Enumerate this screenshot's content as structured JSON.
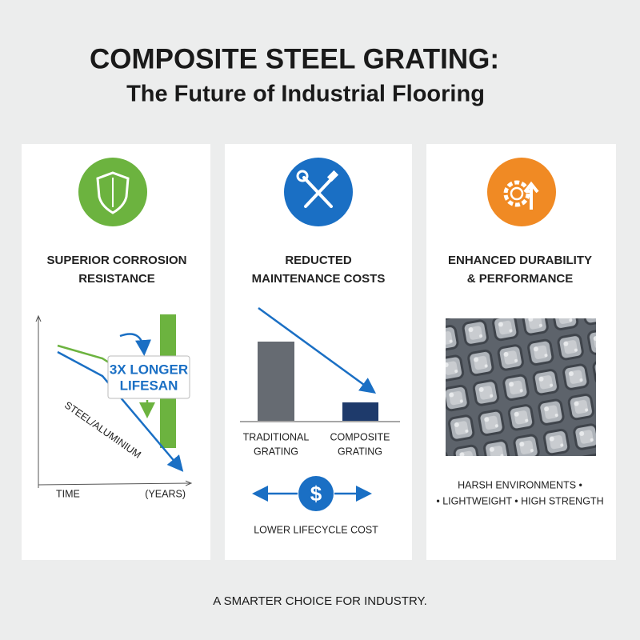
{
  "header": {
    "title": "COMPOSITE STEEL GRATING:",
    "subtitle": "The Future of Industrial Flooring"
  },
  "cards": [
    {
      "title_lines": [
        "SUPERIOR CORROSION",
        "RESISTANCE"
      ],
      "callout_lines": [
        "3X LONGER",
        "LIFESAN"
      ],
      "line_label": "STEEL/ALUMINIUM",
      "x_label_left": "TIME",
      "x_label_right": "(YEARS)"
    },
    {
      "title_lines": [
        "REDUCTED",
        "MAINTENANCE COSTS"
      ],
      "bar_labels": [
        [
          "TRADITIONAL",
          "GRATING"
        ],
        [
          "COMPOSITE",
          "GRATING"
        ]
      ],
      "icon_symbol": "$",
      "caption": "LOWER LIFECYCLE COST"
    },
    {
      "title_lines": [
        "ENHANCED DURABILITY",
        "& PERFORMANCE"
      ],
      "notes": [
        "HARSH ENVIRONMENTS •",
        "• LIGHTWEIGHT • HIGH STRENGTH"
      ]
    }
  ],
  "footer": "A SMARTER CHOICE FOR INDUSTRY."
}
